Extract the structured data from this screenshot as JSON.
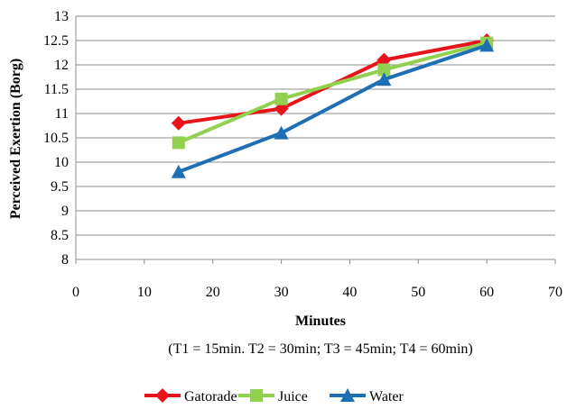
{
  "chart_data": {
    "type": "line",
    "title": "",
    "xlabel": "Minutes",
    "ylabel": "Perceived Exertion (Borg)",
    "note": "(T1 = 15min. T2 = 30min; T3 = 45min; T4 = 60min)",
    "xlim": [
      0,
      70
    ],
    "ylim": [
      8,
      13
    ],
    "x_ticks": [
      0,
      10,
      20,
      30,
      40,
      50,
      60,
      70
    ],
    "y_ticks": [
      "8",
      "8.5",
      "9",
      "9.5",
      "10",
      "10.5",
      "11",
      "11.5",
      "12",
      "12.5",
      "13"
    ],
    "grid": "horizontal",
    "legend_position": "bottom",
    "x": [
      15,
      30,
      45,
      60
    ],
    "series": [
      {
        "name": "Gatorade",
        "color": "#e8141c",
        "marker": "diamond",
        "values": [
          10.8,
          11.1,
          12.1,
          12.5
        ]
      },
      {
        "name": "Juice",
        "color": "#92d050",
        "marker": "square",
        "values": [
          10.4,
          11.3,
          11.9,
          12.45
        ]
      },
      {
        "name": "Water",
        "color": "#1f6fb5",
        "marker": "triangle",
        "values": [
          9.8,
          10.6,
          11.7,
          12.4
        ]
      }
    ]
  }
}
